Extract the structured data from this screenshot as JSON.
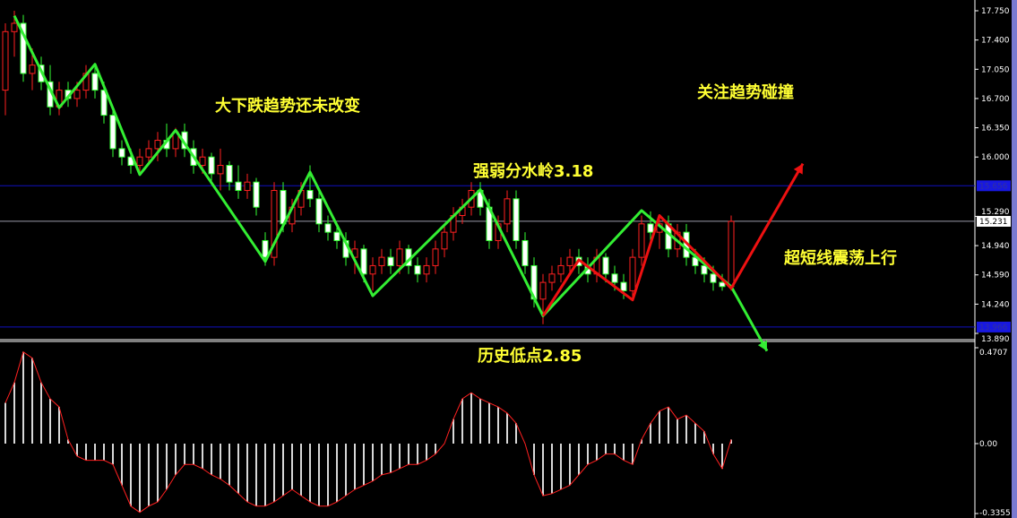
{
  "chart_data": [
    {
      "type": "candlestick",
      "price_axis": {
        "ticks": [
          "17.750",
          "17.400",
          "17.050",
          "16.700",
          "16.350",
          "16.000",
          "15.290",
          "14.940",
          "14.590",
          "14.240",
          "13.890"
        ],
        "ylim": [
          13.89,
          17.75
        ]
      },
      "price_labels": {
        "upper_level": "15.656",
        "current": "15.231",
        "lower_level": "13.966"
      },
      "levels": {
        "upper_level": 15.656,
        "current": 15.231,
        "lower_level": 13.966
      },
      "colors": {
        "bull": "#ff2020",
        "bear": "#33ff33",
        "bear_body": "#ffffff",
        "level_line": "#1010c0",
        "current_line": "#9a9aa8",
        "zigzag_green": "#33ee33",
        "zigzag_red": "#ee1111",
        "annotation": "#ffff33"
      },
      "ohlc": [
        [
          16.8,
          17.6,
          16.5,
          17.5
        ],
        [
          17.5,
          17.75,
          17.2,
          17.6
        ],
        [
          17.6,
          17.7,
          16.9,
          17.0
        ],
        [
          17.0,
          17.3,
          16.8,
          17.1
        ],
        [
          17.1,
          17.2,
          16.8,
          16.9
        ],
        [
          16.9,
          17.1,
          16.5,
          16.6
        ],
        [
          16.6,
          16.9,
          16.5,
          16.8
        ],
        [
          16.8,
          16.9,
          16.6,
          16.7
        ],
        [
          16.7,
          16.9,
          16.6,
          16.8
        ],
        [
          16.8,
          17.1,
          16.7,
          17.0
        ],
        [
          17.0,
          17.1,
          16.7,
          16.8
        ],
        [
          16.8,
          16.9,
          16.4,
          16.5
        ],
        [
          16.5,
          16.6,
          16.0,
          16.1
        ],
        [
          16.1,
          16.2,
          15.9,
          16.0
        ],
        [
          16.0,
          16.1,
          15.8,
          15.9
        ],
        [
          15.9,
          16.1,
          15.8,
          16.0
        ],
        [
          16.0,
          16.2,
          15.9,
          16.1
        ],
        [
          16.1,
          16.3,
          15.95,
          16.2
        ],
        [
          16.2,
          16.4,
          16.0,
          16.1
        ],
        [
          16.1,
          16.35,
          16.0,
          16.3
        ],
        [
          16.3,
          16.4,
          16.0,
          16.1
        ],
        [
          16.1,
          16.2,
          15.8,
          15.9
        ],
        [
          15.9,
          16.1,
          15.8,
          16.0
        ],
        [
          16.0,
          16.05,
          15.7,
          15.8
        ],
        [
          15.8,
          16.1,
          15.6,
          15.9
        ],
        [
          15.9,
          15.95,
          15.6,
          15.7
        ],
        [
          15.7,
          15.9,
          15.5,
          15.6
        ],
        [
          15.6,
          15.8,
          15.5,
          15.7
        ],
        [
          15.7,
          15.75,
          15.3,
          15.4
        ],
        [
          15.0,
          15.1,
          14.7,
          14.8
        ],
        [
          14.8,
          15.7,
          14.7,
          15.6
        ],
        [
          15.6,
          15.7,
          15.1,
          15.2
        ],
        [
          15.2,
          15.5,
          15.1,
          15.4
        ],
        [
          15.4,
          15.7,
          15.3,
          15.6
        ],
        [
          15.6,
          15.9,
          15.4,
          15.5
        ],
        [
          15.5,
          15.6,
          15.1,
          15.2
        ],
        [
          15.2,
          15.3,
          15.0,
          15.1
        ],
        [
          15.1,
          15.2,
          14.9,
          15.0
        ],
        [
          15.0,
          15.1,
          14.7,
          14.8
        ],
        [
          14.8,
          15.0,
          14.6,
          14.9
        ],
        [
          14.9,
          14.95,
          14.5,
          14.6
        ],
        [
          14.6,
          14.8,
          14.4,
          14.7
        ],
        [
          14.7,
          14.9,
          14.6,
          14.8
        ],
        [
          14.8,
          14.9,
          14.6,
          14.7
        ],
        [
          14.7,
          15.0,
          14.6,
          14.9
        ],
        [
          14.9,
          14.95,
          14.6,
          14.7
        ],
        [
          14.7,
          14.8,
          14.5,
          14.6
        ],
        [
          14.6,
          14.8,
          14.5,
          14.7
        ],
        [
          14.7,
          15.0,
          14.6,
          14.9
        ],
        [
          14.9,
          15.2,
          14.8,
          15.1
        ],
        [
          15.1,
          15.4,
          15.0,
          15.3
        ],
        [
          15.3,
          15.5,
          15.2,
          15.4
        ],
        [
          15.4,
          15.7,
          15.3,
          15.6
        ],
        [
          15.6,
          15.7,
          15.3,
          15.4
        ],
        [
          15.4,
          15.5,
          14.9,
          15.0
        ],
        [
          15.0,
          15.3,
          14.9,
          15.2
        ],
        [
          15.2,
          15.6,
          15.1,
          15.5
        ],
        [
          15.5,
          15.6,
          14.9,
          15.0
        ],
        [
          15.0,
          15.1,
          14.6,
          14.7
        ],
        [
          14.7,
          14.8,
          14.2,
          14.3
        ],
        [
          14.3,
          14.6,
          14.0,
          14.5
        ],
        [
          14.5,
          14.7,
          14.4,
          14.6
        ],
        [
          14.6,
          14.8,
          14.5,
          14.7
        ],
        [
          14.7,
          14.9,
          14.6,
          14.8
        ],
        [
          14.8,
          14.9,
          14.6,
          14.7
        ],
        [
          14.7,
          14.8,
          14.5,
          14.6
        ],
        [
          14.6,
          14.9,
          14.5,
          14.8
        ],
        [
          14.8,
          14.85,
          14.5,
          14.6
        ],
        [
          14.6,
          14.7,
          14.4,
          14.5
        ],
        [
          14.5,
          14.6,
          14.3,
          14.4
        ],
        [
          14.4,
          14.9,
          14.3,
          14.8
        ],
        [
          14.8,
          15.3,
          14.7,
          15.2
        ],
        [
          15.2,
          15.35,
          15.0,
          15.1
        ],
        [
          15.1,
          15.3,
          14.9,
          15.2
        ],
        [
          15.2,
          15.3,
          14.8,
          14.9
        ],
        [
          14.9,
          15.2,
          14.8,
          15.1
        ],
        [
          15.1,
          15.2,
          14.7,
          14.8
        ],
        [
          14.8,
          14.9,
          14.6,
          14.7
        ],
        [
          14.7,
          14.8,
          14.5,
          14.6
        ],
        [
          14.6,
          14.7,
          14.4,
          14.5
        ],
        [
          14.5,
          14.6,
          14.4,
          14.45
        ],
        [
          14.45,
          15.3,
          14.4,
          15.23
        ]
      ],
      "zigzag_green": [
        [
          1,
          17.69
        ],
        [
          6,
          16.59
        ],
        [
          10,
          17.11
        ],
        [
          15,
          15.79
        ],
        [
          19,
          16.32
        ],
        [
          29,
          14.75
        ],
        [
          34,
          15.82
        ],
        [
          41,
          14.34
        ],
        [
          53,
          15.61
        ],
        [
          60,
          14.1
        ],
        [
          71,
          15.36
        ],
        [
          81,
          14.45
        ],
        [
          85,
          13.68
        ]
      ],
      "zigzag_red": [
        [
          60,
          14.1
        ],
        [
          64,
          14.77
        ],
        [
          70,
          14.29
        ],
        [
          73,
          15.3
        ],
        [
          81,
          14.43
        ],
        [
          89,
          15.92
        ]
      ],
      "annotations": [
        "大下跌趋势还未改变",
        "关注趋势碰撞",
        "强弱分水岭3.18",
        "超短线震荡上行",
        "历史低点2.85"
      ]
    },
    {
      "type": "bar",
      "indicator_axis": {
        "ticks": [
          "0.4707",
          "0.00",
          "-0.3355"
        ],
        "ylim": [
          -0.3355,
          0.4707
        ]
      },
      "histogram": [
        0.2,
        0.3,
        0.45,
        0.42,
        0.3,
        0.22,
        0.18,
        0.02,
        -0.06,
        -0.08,
        -0.08,
        -0.08,
        -0.1,
        -0.2,
        -0.3,
        -0.33,
        -0.3,
        -0.28,
        -0.22,
        -0.15,
        -0.1,
        -0.1,
        -0.12,
        -0.15,
        -0.17,
        -0.2,
        -0.24,
        -0.28,
        -0.3,
        -0.3,
        -0.28,
        -0.25,
        -0.22,
        -0.25,
        -0.28,
        -0.3,
        -0.3,
        -0.28,
        -0.25,
        -0.22,
        -0.2,
        -0.18,
        -0.15,
        -0.14,
        -0.12,
        -0.1,
        -0.1,
        -0.08,
        -0.05,
        0.0,
        0.12,
        0.22,
        0.25,
        0.22,
        0.2,
        0.18,
        0.15,
        0.1,
        0.0,
        -0.15,
        -0.25,
        -0.24,
        -0.22,
        -0.2,
        -0.15,
        -0.1,
        -0.08,
        -0.05,
        -0.05,
        -0.08,
        -0.1,
        0.02,
        0.1,
        0.16,
        0.18,
        0.12,
        0.14,
        0.1,
        0.06,
        -0.05,
        -0.12,
        0.02
      ],
      "colors": {
        "bars": "#d8d8d8",
        "signal": "#ff2020"
      }
    }
  ]
}
